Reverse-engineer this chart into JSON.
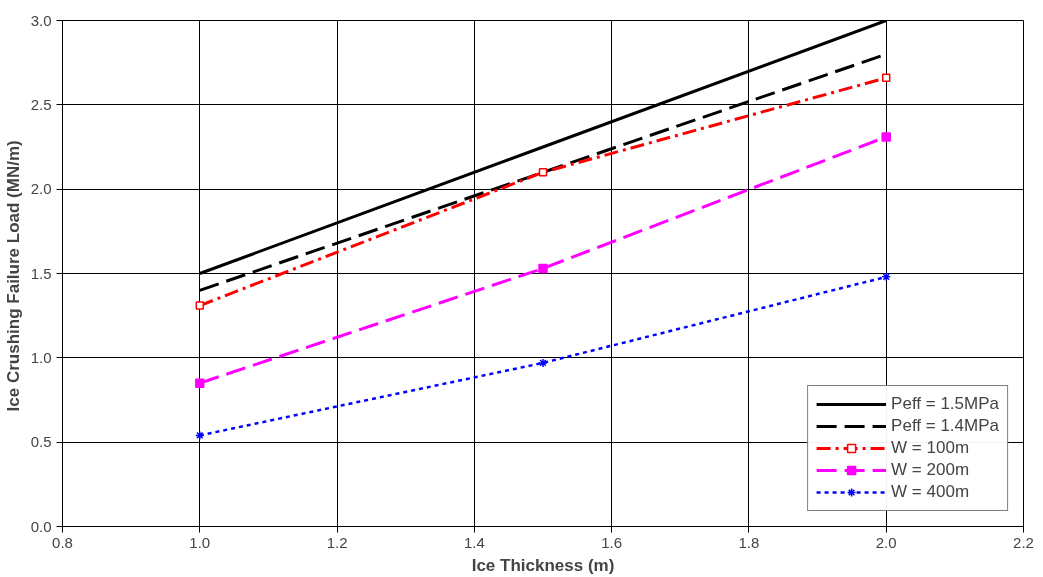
{
  "chart_data": {
    "type": "line",
    "xlabel": "Ice Thickness (m)",
    "ylabel": "Ice Crushing Failure Load  (MN/m)",
    "x": [
      1.0,
      1.5,
      2.0
    ],
    "series": [
      {
        "name": "Peff = 1.5MPa",
        "color": "#000000",
        "values": [
          1.5,
          2.25,
          3.0
        ],
        "line_style": "solid",
        "marker": "none"
      },
      {
        "name": "Peff = 1.4MPa",
        "color": "#000000",
        "values": [
          1.4,
          2.1,
          2.8
        ],
        "line_style": "dashed",
        "marker": "none"
      },
      {
        "name": "W = 100m",
        "color": "#ff0000",
        "values": [
          1.31,
          2.1,
          2.66
        ],
        "line_style": "dashdot",
        "marker": "square_open"
      },
      {
        "name": "W = 200m",
        "color": "#ff00ff",
        "values": [
          0.85,
          1.53,
          2.31
        ],
        "line_style": "dashed",
        "marker": "square"
      },
      {
        "name": "W = 400m",
        "color": "#0000ff",
        "values": [
          0.54,
          0.97,
          1.48
        ],
        "line_style": "dotted",
        "marker": "cross"
      }
    ],
    "xlim": [
      0.8,
      2.2
    ],
    "xticks": [
      {
        "value": 0.8,
        "label": "0.8"
      },
      {
        "value": 1.0,
        "label": "1.0"
      },
      {
        "value": 1.2,
        "label": "1.2"
      },
      {
        "value": 1.4,
        "label": "1.4"
      },
      {
        "value": 1.6,
        "label": "1.6"
      },
      {
        "value": 1.8,
        "label": "1.8"
      },
      {
        "value": 2.0,
        "label": "2.0"
      },
      {
        "value": 2.2,
        "label": "2.2"
      }
    ],
    "ylim": [
      0,
      3
    ],
    "yticks": [
      {
        "value": 0,
        "label": "0.0"
      },
      {
        "value": 0.5,
        "label": "0.5"
      },
      {
        "value": 1.0,
        "label": "1.0"
      },
      {
        "value": 1.5,
        "label": "1.5"
      },
      {
        "value": 2.0,
        "label": "2.0"
      },
      {
        "value": 2.5,
        "label": "2.5"
      },
      {
        "value": 3.0,
        "label": "3.0"
      }
    ],
    "grid": true,
    "legend": "bottom right"
  }
}
